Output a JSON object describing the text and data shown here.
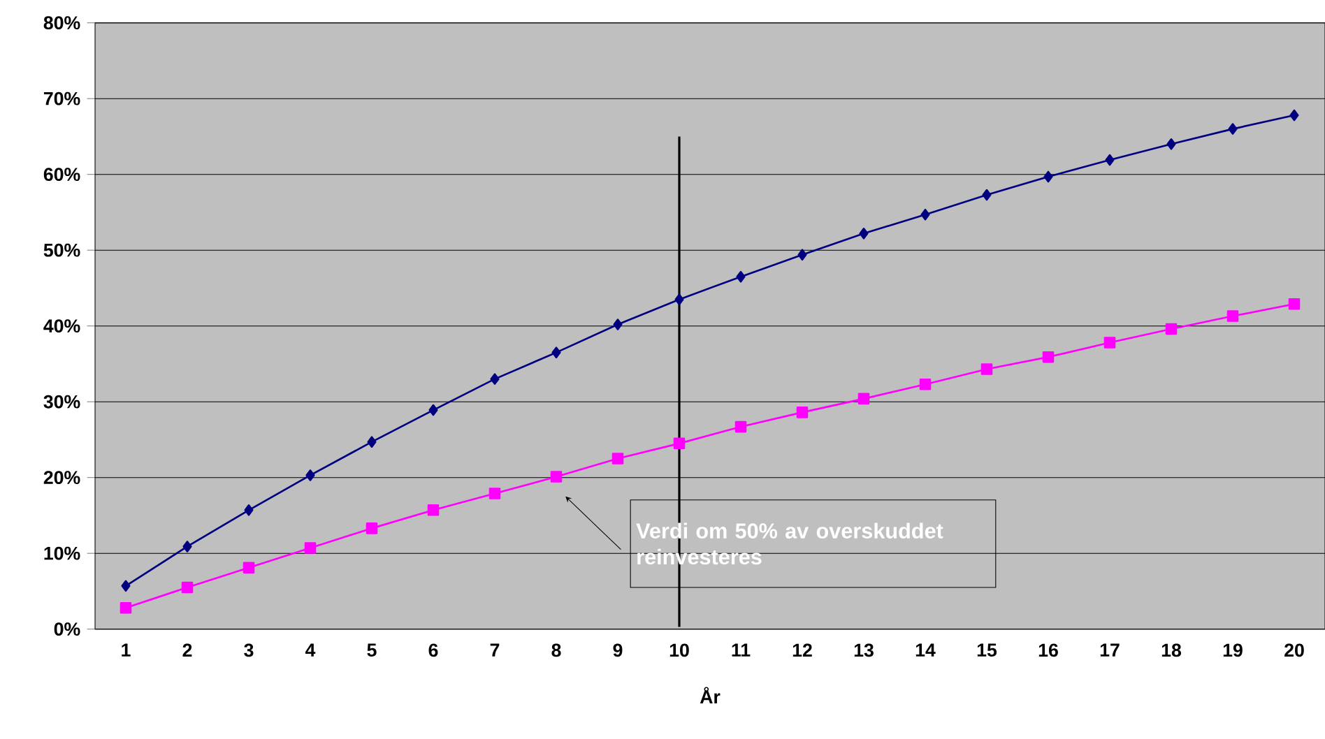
{
  "chart_data": {
    "type": "line",
    "xlabel": "År",
    "x": [
      1,
      2,
      3,
      4,
      5,
      6,
      7,
      8,
      9,
      10,
      11,
      12,
      13,
      14,
      15,
      16,
      17,
      18,
      19,
      20
    ],
    "xlim": [
      0.5,
      20.5
    ],
    "xticks": [
      1,
      2,
      3,
      4,
      5,
      6,
      7,
      8,
      9,
      10,
      11,
      12,
      13,
      14,
      15,
      16,
      17,
      18,
      19,
      20
    ],
    "ylim": [
      0,
      80
    ],
    "yticks": [
      {
        "value": 0,
        "label": "0%"
      },
      {
        "value": 10,
        "label": "10%"
      },
      {
        "value": 20,
        "label": "20%"
      },
      {
        "value": 30,
        "label": "30%"
      },
      {
        "value": 40,
        "label": "40%"
      },
      {
        "value": 50,
        "label": "50%"
      },
      {
        "value": 60,
        "label": "60%"
      },
      {
        "value": 70,
        "label": "70%"
      },
      {
        "value": 80,
        "label": "80%"
      }
    ],
    "grid": "y",
    "series": [
      {
        "color": "#000080",
        "marker": "diamond",
        "values": [
          5.7,
          10.9,
          15.7,
          20.3,
          24.7,
          28.9,
          33.0,
          36.5,
          40.2,
          43.5,
          46.5,
          49.4,
          52.2,
          54.7,
          57.3,
          59.7,
          61.9,
          64.0,
          66.0,
          67.8
        ]
      },
      {
        "color": "#ff00ff",
        "marker": "square",
        "values": [
          2.8,
          5.5,
          8.1,
          10.7,
          13.3,
          15.7,
          17.9,
          20.1,
          22.5,
          24.5,
          26.7,
          28.6,
          30.4,
          32.3,
          34.3,
          35.9,
          37.8,
          39.6,
          41.3,
          42.9
        ]
      }
    ],
    "ref_lines": [
      {
        "axis": "x",
        "value": 10,
        "color": "#000000"
      }
    ],
    "annotations": [
      "Verdi om 50% av overskuddet reinvesteres"
    ]
  }
}
